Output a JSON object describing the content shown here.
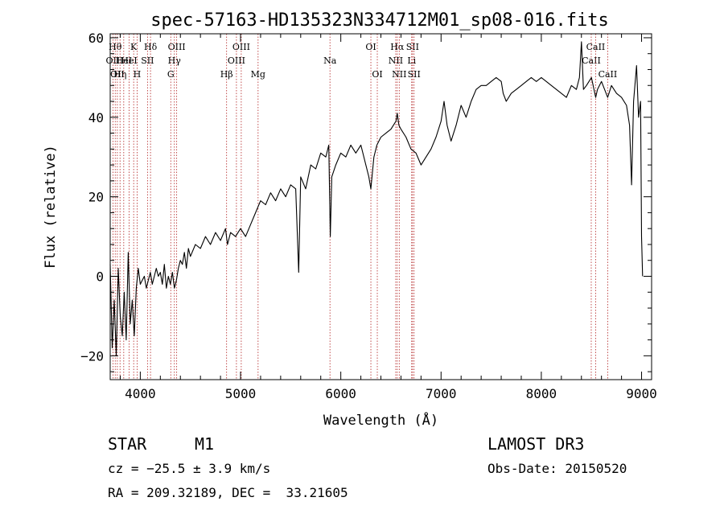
{
  "chart_data": {
    "type": "line",
    "title": "spec-57163-HD135323N334712M01_sp08-016.fits",
    "xlabel": "Wavelength (Å)",
    "ylabel": "Flux (relative)",
    "xlim": [
      3700,
      9100
    ],
    "ylim": [
      -26,
      61
    ],
    "x_ticks": [
      4000,
      5000,
      6000,
      7000,
      8000,
      9000
    ],
    "y_ticks": [
      -20,
      0,
      20,
      40,
      60
    ],
    "grid": false,
    "series": [
      {
        "color": "#000000",
        "points": [
          [
            3700,
            3
          ],
          [
            3720,
            -18
          ],
          [
            3740,
            -6
          ],
          [
            3760,
            -20
          ],
          [
            3780,
            2
          ],
          [
            3800,
            -10
          ],
          [
            3820,
            -15
          ],
          [
            3840,
            -4
          ],
          [
            3860,
            -16
          ],
          [
            3880,
            6
          ],
          [
            3900,
            -12
          ],
          [
            3920,
            -6
          ],
          [
            3940,
            -15
          ],
          [
            3960,
            -3
          ],
          [
            3980,
            2
          ],
          [
            4000,
            -2
          ],
          [
            4020,
            -1
          ],
          [
            4040,
            0
          ],
          [
            4060,
            -3
          ],
          [
            4080,
            -1
          ],
          [
            4100,
            1
          ],
          [
            4120,
            -2
          ],
          [
            4140,
            0
          ],
          [
            4160,
            2
          ],
          [
            4180,
            0
          ],
          [
            4200,
            1
          ],
          [
            4220,
            -2
          ],
          [
            4240,
            3
          ],
          [
            4260,
            -3
          ],
          [
            4280,
            0
          ],
          [
            4300,
            -2
          ],
          [
            4320,
            1
          ],
          [
            4340,
            -3
          ],
          [
            4360,
            -1
          ],
          [
            4380,
            2
          ],
          [
            4400,
            4
          ],
          [
            4420,
            3
          ],
          [
            4440,
            6
          ],
          [
            4460,
            2
          ],
          [
            4480,
            7
          ],
          [
            4500,
            5
          ],
          [
            4550,
            8
          ],
          [
            4600,
            7
          ],
          [
            4650,
            10
          ],
          [
            4700,
            8
          ],
          [
            4750,
            11
          ],
          [
            4800,
            9
          ],
          [
            4850,
            12
          ],
          [
            4870,
            8
          ],
          [
            4900,
            11
          ],
          [
            4950,
            10
          ],
          [
            5000,
            12
          ],
          [
            5050,
            10
          ],
          [
            5100,
            13
          ],
          [
            5150,
            16
          ],
          [
            5200,
            19
          ],
          [
            5250,
            18
          ],
          [
            5300,
            21
          ],
          [
            5350,
            19
          ],
          [
            5400,
            22
          ],
          [
            5450,
            20
          ],
          [
            5500,
            23
          ],
          [
            5550,
            22
          ],
          [
            5580,
            1
          ],
          [
            5600,
            25
          ],
          [
            5650,
            22
          ],
          [
            5700,
            28
          ],
          [
            5750,
            27
          ],
          [
            5800,
            31
          ],
          [
            5850,
            30
          ],
          [
            5880,
            33
          ],
          [
            5895,
            10
          ],
          [
            5910,
            25
          ],
          [
            5950,
            28
          ],
          [
            6000,
            31
          ],
          [
            6050,
            30
          ],
          [
            6100,
            33
          ],
          [
            6150,
            31
          ],
          [
            6200,
            33
          ],
          [
            6250,
            28
          ],
          [
            6280,
            25
          ],
          [
            6300,
            22
          ],
          [
            6330,
            30
          ],
          [
            6360,
            33
          ],
          [
            6400,
            35
          ],
          [
            6450,
            36
          ],
          [
            6500,
            37
          ],
          [
            6550,
            39
          ],
          [
            6563,
            41
          ],
          [
            6580,
            38
          ],
          [
            6600,
            37
          ],
          [
            6650,
            35
          ],
          [
            6700,
            32
          ],
          [
            6750,
            31
          ],
          [
            6800,
            28
          ],
          [
            6850,
            30
          ],
          [
            6900,
            32
          ],
          [
            6950,
            35
          ],
          [
            7000,
            39
          ],
          [
            7030,
            44
          ],
          [
            7060,
            38
          ],
          [
            7100,
            34
          ],
          [
            7150,
            38
          ],
          [
            7200,
            43
          ],
          [
            7250,
            40
          ],
          [
            7300,
            44
          ],
          [
            7350,
            47
          ],
          [
            7400,
            48
          ],
          [
            7450,
            48
          ],
          [
            7500,
            49
          ],
          [
            7550,
            50
          ],
          [
            7600,
            49
          ],
          [
            7620,
            46
          ],
          [
            7650,
            44
          ],
          [
            7700,
            46
          ],
          [
            7750,
            47
          ],
          [
            7800,
            48
          ],
          [
            7850,
            49
          ],
          [
            7900,
            50
          ],
          [
            7950,
            49
          ],
          [
            8000,
            50
          ],
          [
            8050,
            49
          ],
          [
            8100,
            48
          ],
          [
            8150,
            47
          ],
          [
            8200,
            46
          ],
          [
            8250,
            45
          ],
          [
            8300,
            48
          ],
          [
            8350,
            47
          ],
          [
            8380,
            50
          ],
          [
            8400,
            59
          ],
          [
            8420,
            47
          ],
          [
            8450,
            48
          ],
          [
            8500,
            50
          ],
          [
            8542,
            45
          ],
          [
            8560,
            47
          ],
          [
            8600,
            49
          ],
          [
            8662,
            45
          ],
          [
            8700,
            48
          ],
          [
            8750,
            46
          ],
          [
            8800,
            45
          ],
          [
            8850,
            43
          ],
          [
            8880,
            38
          ],
          [
            8900,
            23
          ],
          [
            8920,
            44
          ],
          [
            8950,
            53
          ],
          [
            8970,
            40
          ],
          [
            8990,
            44
          ],
          [
            9000,
            10
          ],
          [
            9010,
            0
          ]
        ]
      }
    ],
    "line_markers": [
      {
        "wavelength": 3727,
        "label": "OII",
        "row": 1
      },
      {
        "wavelength": 3750,
        "label": "Hθ",
        "row": 0
      },
      {
        "wavelength": 3771,
        "label": "OII",
        "row": 2
      },
      {
        "wavelength": 3798,
        "label": "Hη",
        "row": 2
      },
      {
        "wavelength": 3835,
        "label": "HeI",
        "row": 1
      },
      {
        "wavelength": 3889,
        "label": "HeI",
        "row": 1
      },
      {
        "wavelength": 3934,
        "label": "K",
        "row": 0
      },
      {
        "wavelength": 3968,
        "label": "H",
        "row": 2
      },
      {
        "wavelength": 4072,
        "label": "SII",
        "row": 1
      },
      {
        "wavelength": 4102,
        "label": "Hδ",
        "row": 0
      },
      {
        "wavelength": 4304,
        "label": "G",
        "row": 2
      },
      {
        "wavelength": 4340,
        "label": "Hγ",
        "row": 1
      },
      {
        "wavelength": 4363,
        "label": "OIII",
        "row": 0
      },
      {
        "wavelength": 4861,
        "label": "Hβ",
        "row": 2
      },
      {
        "wavelength": 4959,
        "label": "OIII",
        "row": 1
      },
      {
        "wavelength": 5007,
        "label": "OIII",
        "row": 0
      },
      {
        "wavelength": 5175,
        "label": "Mg",
        "row": 2
      },
      {
        "wavelength": 5892,
        "label": "Na",
        "row": 1
      },
      {
        "wavelength": 6300,
        "label": "OI",
        "row": 0
      },
      {
        "wavelength": 6364,
        "label": "OI",
        "row": 2
      },
      {
        "wavelength": 6548,
        "label": "NII",
        "row": 1
      },
      {
        "wavelength": 6563,
        "label": "Hα",
        "row": 0
      },
      {
        "wavelength": 6583,
        "label": "NII",
        "row": 2
      },
      {
        "wavelength": 6707,
        "label": "Li",
        "row": 1
      },
      {
        "wavelength": 6716,
        "label": "SII",
        "row": 0
      },
      {
        "wavelength": 6731,
        "label": "SII",
        "row": 2
      },
      {
        "wavelength": 8498,
        "label": "CaII",
        "row": 1
      },
      {
        "wavelength": 8542,
        "label": "CaII",
        "row": 0
      },
      {
        "wavelength": 8662,
        "label": "CaII",
        "row": 2
      }
    ]
  },
  "info": {
    "class_label": "STAR",
    "subclass_label": "M1",
    "redshift": "cz = −25.5 ± 3.9 km/s",
    "coords": "RA = 209.32189, DEC =  33.21605",
    "survey": "LAMOST DR3",
    "obs_date": "Obs-Date: 20150520"
  },
  "colors": {
    "spectrum": "#000000",
    "line_markers": "#b22222",
    "axes": "#000000"
  }
}
